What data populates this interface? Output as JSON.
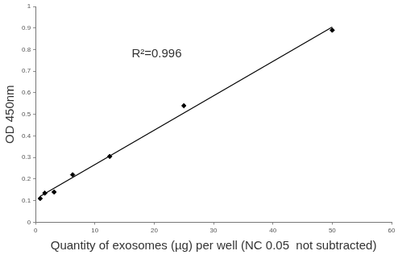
{
  "chart_data": {
    "type": "scatter",
    "x_label": "Quantity of exosomes (µg) per well (NC 0.05  not subtracted)",
    "y_label": "OD 450nm",
    "annotations": [
      "R²=0.996"
    ],
    "series": [
      {
        "type": "scatter",
        "marker": "diamond",
        "color": "#000000",
        "x": [
          0.78,
          1.56,
          3.125,
          6.25,
          12.5,
          25,
          50
        ],
        "values": [
          0.11,
          0.135,
          0.14,
          0.22,
          0.305,
          0.54,
          0.89
        ]
      },
      {
        "type": "line",
        "line_style": "solid",
        "color": "#000000",
        "x": [
          0.78,
          50
        ],
        "values": [
          0.12,
          0.905
        ]
      }
    ],
    "xlim": [
      0,
      60
    ],
    "xticks": [
      0,
      10,
      20,
      30,
      40,
      50,
      60
    ],
    "ylim": [
      0,
      1
    ],
    "yticks": [
      0,
      0.1,
      0.2,
      0.3,
      0.4,
      0.5,
      0.6,
      0.7,
      0.8,
      0.9,
      1
    ],
    "grid": false
  }
}
